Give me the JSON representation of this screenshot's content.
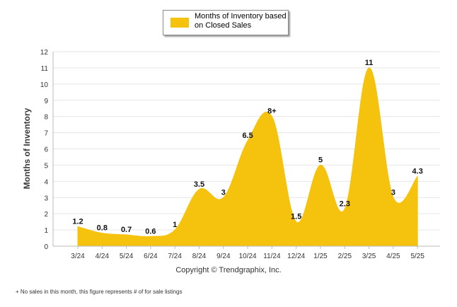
{
  "chart_data": {
    "type": "area",
    "categories": [
      "3/24",
      "4/24",
      "5/24",
      "6/24",
      "7/24",
      "8/24",
      "9/24",
      "10/24",
      "11/24",
      "12/24",
      "1/25",
      "2/25",
      "3/25",
      "4/25",
      "5/25"
    ],
    "series": [
      {
        "name": "Months of Inventory based on Closed Sales",
        "values": [
          1.2,
          0.8,
          0.7,
          0.6,
          1,
          3.5,
          3,
          6.5,
          8,
          1.5,
          5,
          2.3,
          11,
          3,
          4.3
        ],
        "labels": [
          "1.2",
          "0.8",
          "0.7",
          "0.6",
          "1",
          "3.5",
          "3",
          "6.5",
          "8+",
          "1.5",
          "5",
          "2.3",
          "11",
          "3",
          "4.3"
        ],
        "color": "#f5c20e"
      }
    ],
    "ylabel": "Months of Inventory",
    "xlabel": "",
    "ylim": [
      0,
      12
    ],
    "yticks": [
      0,
      1,
      2,
      3,
      4,
      5,
      6,
      7,
      8,
      9,
      10,
      11,
      12
    ],
    "grid": true,
    "legend_position": "top"
  },
  "legend": {
    "label": "Months of Inventory based on Closed Sales"
  },
  "copyright": "Copyright © Trendgraphix, Inc.",
  "footnote": "+  No sales in this month, this figure represents # of for sale listings"
}
